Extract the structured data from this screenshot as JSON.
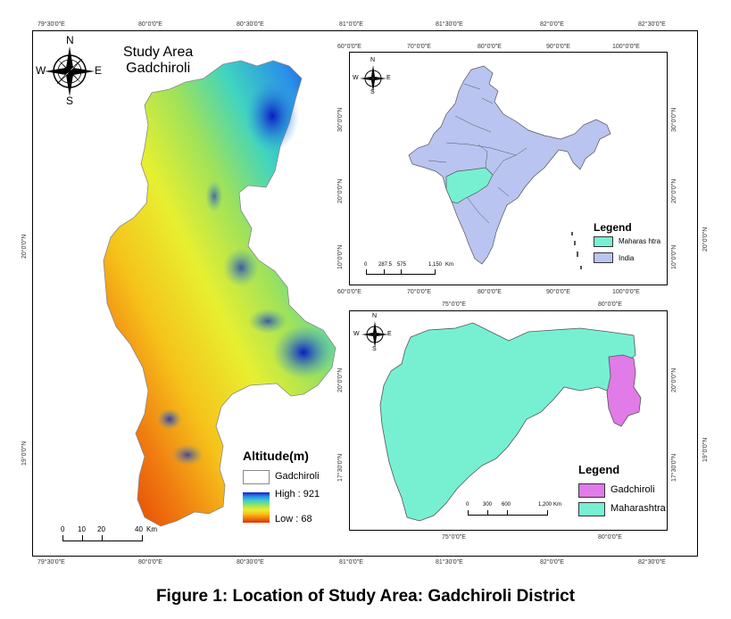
{
  "main_map": {
    "title_line1": "Study Area",
    "title_line2": "Gadchiroli",
    "top_ticks": [
      "79°30'0\"E",
      "80°0'0\"E",
      "80°30'0\"E",
      "81°0'0\"E",
      "81°30'0\"E",
      "82°0'0\"E",
      "82°30'0\"E"
    ],
    "bottom_ticks": [
      "79°30'0\"E",
      "80°0'0\"E",
      "80°30'0\"E",
      "81°0'0\"E",
      "81°30'0\"E",
      "82°0'0\"E",
      "82°30'0\"E"
    ],
    "left_ticks": [
      "20°0'0\"N",
      "19°0'0\"N"
    ],
    "right_ticks": [
      "20°0'0\"N",
      "19°0'0\"N"
    ],
    "compass": {
      "n": "N",
      "s": "S",
      "e": "E",
      "w": "W"
    },
    "legend": {
      "title": "Altitude(m)",
      "boundary_label": "Gadchiroli",
      "high_label": "High : 921",
      "low_label": "Low : 68"
    },
    "scale": {
      "labels": [
        "0",
        "10",
        "20",
        "40"
      ],
      "unit": "Km"
    }
  },
  "india_map": {
    "top_ticks": [
      "60°0'0\"E",
      "70°0'0\"E",
      "80°0'0\"E",
      "90°0'0\"E",
      "100°0'0\"E"
    ],
    "bottom_ticks": [
      "60°0'0\"E",
      "70°0'0\"E",
      "80°0'0\"E",
      "90°0'0\"E",
      "100°0'0\"E"
    ],
    "left_ticks": [
      "30°0'0\"N",
      "20°0'0\"N",
      "10°0'0\"N"
    ],
    "right_ticks": [
      "30°0'0\"N",
      "20°0'0\"N",
      "10°0'0\"N"
    ],
    "compass": {
      "n": "N",
      "s": "S",
      "e": "E",
      "w": "W"
    },
    "legend": {
      "title": "Legend",
      "items": [
        {
          "label": "Maharas htra",
          "color": "#77f0d2"
        },
        {
          "label": "India",
          "color": "#b9c4f0"
        }
      ]
    },
    "scale": {
      "labels": [
        "0",
        "287.5",
        "575",
        "1,150"
      ],
      "unit": "Km"
    }
  },
  "maharashtra_map": {
    "top_ticks": [
      "75°0'0\"E",
      "80°0'0\"E"
    ],
    "bottom_ticks": [
      "75°0'0\"E",
      "80°0'0\"E"
    ],
    "left_ticks": [
      "20°0'0\"N",
      "17°30'0\"N"
    ],
    "right_ticks": [
      "20°0'0\"N",
      "17°30'0\"N"
    ],
    "compass": {
      "n": "N",
      "s": "S",
      "e": "E",
      "w": "W"
    },
    "legend": {
      "title": "Legend",
      "items": [
        {
          "label": "Gadchiroli",
          "color": "#e07be8"
        },
        {
          "label": "Maharashtra",
          "color": "#77f0d2"
        }
      ]
    },
    "scale": {
      "labels": [
        "0",
        "300",
        "600",
        "1,200"
      ],
      "unit": "Km"
    }
  },
  "outer_right_ticks": [
    "20°0'0\"N",
    "19°0'0\"N"
  ],
  "caption": "Figure 1: Location of Study Area: Gadchiroli District"
}
